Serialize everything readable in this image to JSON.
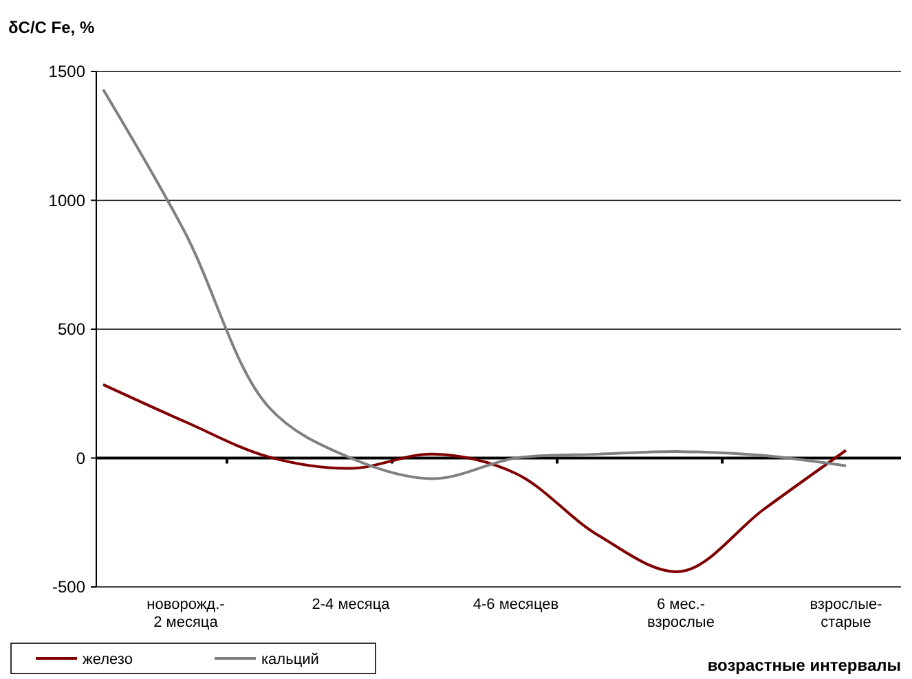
{
  "chart_data": {
    "type": "line",
    "ylabel": "δC/C Fe, %",
    "xlabel": "возрастные интервалы",
    "categories": [
      null,
      "новорожд.-2 месяца",
      null,
      "2-4 месяца",
      null,
      "4-6 месяцев",
      null,
      "6 мес.-взрослые",
      null,
      "взрослые-старые"
    ],
    "series": [
      {
        "name": "железо",
        "color": "#800000",
        "values": [
          285,
          140,
          5,
          -40,
          15,
          -60,
          -300,
          -440,
          -200,
          30
        ]
      },
      {
        "name": "кальций",
        "color": "#808080",
        "values": [
          1430,
          870,
          200,
          0,
          -80,
          0,
          15,
          25,
          10,
          -30
        ]
      }
    ],
    "ylim": [
      -500,
      1500
    ],
    "yticks": [
      -500,
      0,
      500,
      1000,
      1500
    ],
    "grid": "y",
    "legend": "bottom left",
    "marker": "none",
    "line_style": "solid"
  }
}
